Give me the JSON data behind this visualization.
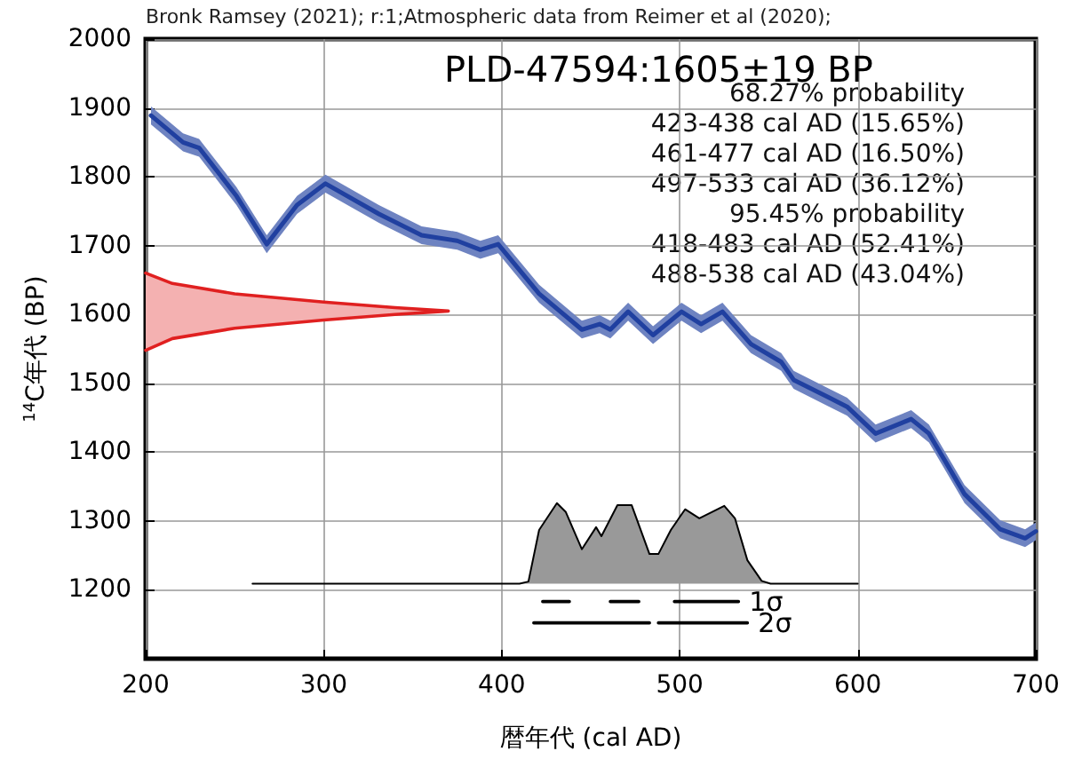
{
  "chart_data": {
    "type": "line",
    "title": "PLD-47594:1605±19 BP",
    "xlabel": "暦年代 (cal AD)",
    "ylabel": "$^{14}$C年代 (BP)",
    "annotations": [
      "Bronk Ramsey (2021); r:1;Atmospheric data from Reimer et al (2020);",
      "68.27% probability",
      "423-438 cal AD (15.65%)",
      "461-477 cal AD (16.50%)",
      "497-533 cal AD (36.12%)",
      "95.45% probability",
      "418-483 cal AD (52.41%)",
      "488-538 cal AD (43.04%)"
    ],
    "xlim": [
      200,
      700
    ],
    "xticks": [
      200,
      300,
      400,
      500,
      600,
      700
    ],
    "ylim": [
      1100,
      2000
    ],
    "yticks": [
      1200,
      1300,
      1400,
      1500,
      1600,
      1700,
      1800,
      1900,
      2000
    ],
    "grid": true,
    "marker": "none",
    "line_style": "solid",
    "series": [
      {
        "color": "#2040a0",
        "x": [
          203,
          221,
          230,
          251,
          268,
          285,
          301,
          331,
          355,
          375,
          388,
          398,
          421,
          445,
          455,
          461,
          471,
          485,
          501,
          512,
          524,
          540,
          557,
          564,
          584,
          594,
          610,
          630,
          640,
          660,
          680,
          694,
          700
        ],
        "values": [
          1889,
          1850,
          1842,
          1772,
          1702,
          1759,
          1790,
          1746,
          1715,
          1707,
          1694,
          1702,
          1630,
          1578,
          1586,
          1578,
          1604,
          1570,
          1604,
          1586,
          1604,
          1557,
          1531,
          1505,
          1479,
          1466,
          1427,
          1448,
          1427,
          1339,
          1288,
          1275,
          1285
        ],
        "lower": [
          1876,
          1837,
          1829,
          1759,
          1689,
          1746,
          1777,
          1733,
          1702,
          1694,
          1681,
          1689,
          1617,
          1565,
          1573,
          1565,
          1591,
          1557,
          1591,
          1573,
          1591,
          1544,
          1518,
          1492,
          1466,
          1453,
          1414,
          1435,
          1414,
          1326,
          1275,
          1262,
          1272
        ],
        "upper": [
          1902,
          1863,
          1855,
          1785,
          1715,
          1772,
          1803,
          1759,
          1728,
          1720,
          1707,
          1715,
          1643,
          1591,
          1599,
          1591,
          1617,
          1583,
          1617,
          1599,
          1617,
          1570,
          1544,
          1518,
          1492,
          1479,
          1440,
          1461,
          1440,
          1352,
          1301,
          1288,
          1298
        ]
      },
      {
        "color": "#e02020",
        "x": [
          200,
          215,
          250,
          300,
          340,
          370,
          340,
          300,
          250,
          215,
          200
        ],
        "values": [
          1660,
          1645,
          1630,
          1618,
          1610,
          1605,
          1600,
          1592,
          1580,
          1565,
          1548
        ]
      },
      {
        "type": "area",
        "color": "#999999",
        "x": [
          260,
          410,
          415,
          421,
          431,
          436,
          445,
          453,
          456,
          465,
          473,
          483,
          488,
          495,
          503,
          511,
          525,
          531,
          538,
          546,
          551,
          600
        ],
        "values": [
          1209,
          1209,
          1212,
          1287,
          1326,
          1313,
          1259,
          1291,
          1278,
          1323,
          1323,
          1252,
          1252,
          1287,
          1317,
          1304,
          1322,
          1304,
          1243,
          1213,
          1209,
          1209
        ]
      },
      {
        "name": "1σ",
        "color": "#000000",
        "x": [
          423,
          438,
          450,
          461,
          477,
          487,
          497,
          533
        ],
        "values": [
          1183,
          1183,
          null,
          1183,
          1183,
          null,
          1183,
          1183
        ]
      },
      {
        "name": "2σ",
        "color": "#000000",
        "x": [
          418,
          483,
          485,
          488,
          538
        ],
        "values": [
          1152,
          1152,
          null,
          1152,
          1152
        ]
      }
    ]
  }
}
